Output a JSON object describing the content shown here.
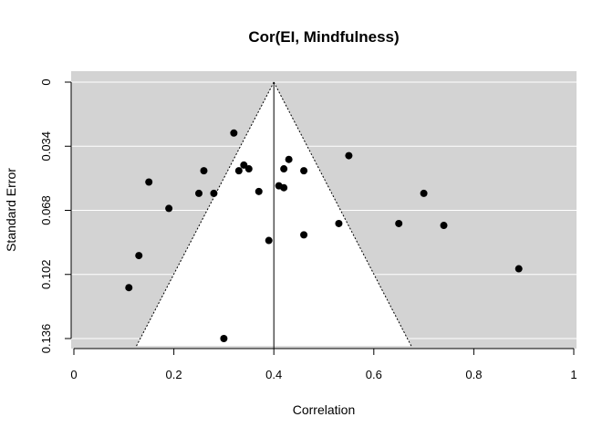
{
  "chart_data": {
    "type": "scatter",
    "subtype": "funnel-plot",
    "title": "Cor(EI, Mindfulness)",
    "xlabel": "Correlation",
    "ylabel": "Standard Error",
    "xlim": [
      0,
      1
    ],
    "ylim": [
      0.136,
      0
    ],
    "y_reversed": true,
    "x_ticks": [
      "0",
      "0.2",
      "0.4",
      "0.6",
      "0.8",
      "1"
    ],
    "y_ticks": [
      "0",
      "0.034",
      "0.068",
      "0.102",
      "0.136"
    ],
    "x_tick_values": [
      0,
      0.2,
      0.4,
      0.6,
      0.8,
      1
    ],
    "y_tick_values": [
      0,
      0.034,
      0.068,
      0.102,
      0.136
    ],
    "reference_line_x": 0.4,
    "funnel": {
      "apex_x": 0.4,
      "apex_se": 0,
      "lower_left_x": 0.125,
      "lower_right_x": 0.675,
      "lower_se": 0.14
    },
    "grid": "horizontal",
    "colors": {
      "panel": "#d3d3d3",
      "funnel_fill": "#ffffff",
      "grid": "#ffffff",
      "points": "#000000"
    },
    "points": [
      {
        "x": 0.32,
        "y": 0.027
      },
      {
        "x": 0.55,
        "y": 0.039
      },
      {
        "x": 0.43,
        "y": 0.041
      },
      {
        "x": 0.34,
        "y": 0.044
      },
      {
        "x": 0.26,
        "y": 0.047
      },
      {
        "x": 0.33,
        "y": 0.047
      },
      {
        "x": 0.35,
        "y": 0.046
      },
      {
        "x": 0.42,
        "y": 0.046
      },
      {
        "x": 0.46,
        "y": 0.047
      },
      {
        "x": 0.15,
        "y": 0.053
      },
      {
        "x": 0.41,
        "y": 0.055
      },
      {
        "x": 0.42,
        "y": 0.056
      },
      {
        "x": 0.37,
        "y": 0.058
      },
      {
        "x": 0.25,
        "y": 0.059
      },
      {
        "x": 0.28,
        "y": 0.059
      },
      {
        "x": 0.7,
        "y": 0.059
      },
      {
        "x": 0.19,
        "y": 0.067
      },
      {
        "x": 0.53,
        "y": 0.075
      },
      {
        "x": 0.65,
        "y": 0.075
      },
      {
        "x": 0.74,
        "y": 0.076
      },
      {
        "x": 0.46,
        "y": 0.081
      },
      {
        "x": 0.39,
        "y": 0.084
      },
      {
        "x": 0.13,
        "y": 0.092
      },
      {
        "x": 0.89,
        "y": 0.099
      },
      {
        "x": 0.11,
        "y": 0.109
      },
      {
        "x": 0.3,
        "y": 0.136
      }
    ]
  }
}
